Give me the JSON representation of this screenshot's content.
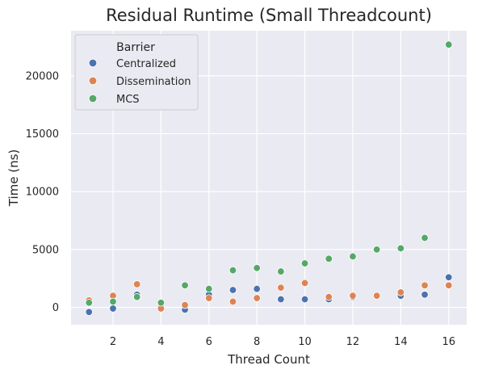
{
  "chart_data": {
    "type": "scatter",
    "title": "Residual Runtime (Small Threadcount)",
    "xlabel": "Thread Count",
    "ylabel": "Time (ns)",
    "xlim": [
      0.25,
      16.75
    ],
    "ylim": [
      -1500,
      23900
    ],
    "xticks": [
      2,
      4,
      6,
      8,
      10,
      12,
      14,
      16
    ],
    "yticks": [
      0,
      5000,
      10000,
      15000,
      20000
    ],
    "grid": true,
    "background": "#eaeaf2",
    "legend": {
      "title": "Barrier",
      "placement": "top-left"
    },
    "series": [
      {
        "name": "Centralized",
        "color": "#4c72b0",
        "x": [
          1,
          2,
          3,
          4,
          5,
          6,
          7,
          8,
          9,
          10,
          11,
          12,
          13,
          14,
          15,
          16
        ],
        "y": [
          -400,
          -100,
          1100,
          200,
          -200,
          1100,
          1500,
          1600,
          700,
          700,
          700,
          900,
          1000,
          1000,
          1100,
          2600
        ]
      },
      {
        "name": "Dissemination",
        "color": "#dd8452",
        "x": [
          1,
          2,
          3,
          4,
          5,
          6,
          7,
          8,
          9,
          10,
          11,
          12,
          13,
          14,
          15,
          16
        ],
        "y": [
          600,
          1000,
          2000,
          -100,
          200,
          800,
          500,
          800,
          1700,
          2100,
          900,
          1000,
          1000,
          1300,
          1900,
          1900
        ]
      },
      {
        "name": "MCS",
        "color": "#55a868",
        "x": [
          1,
          2,
          3,
          4,
          5,
          6,
          7,
          8,
          9,
          10,
          11,
          12,
          13,
          14,
          15,
          16
        ],
        "y": [
          400,
          500,
          900,
          400,
          1900,
          1600,
          3200,
          3400,
          3100,
          3800,
          4200,
          4400,
          5000,
          5100,
          6000,
          22700
        ]
      }
    ]
  }
}
